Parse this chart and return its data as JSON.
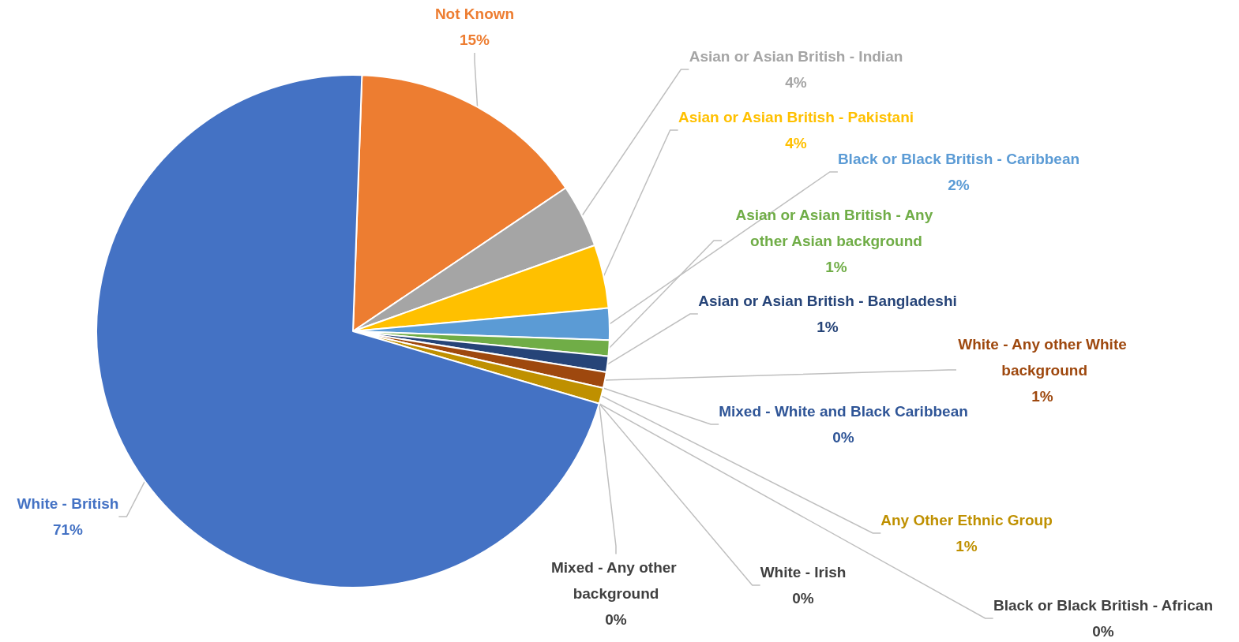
{
  "chart_data": {
    "type": "pie",
    "categories": [
      "Not Known",
      "Asian or Asian British - Indian",
      "Asian or Asian British - Pakistani",
      "Black or Black British - Caribbean",
      "Asian or Asian British - Any other Asian background",
      "Asian or Asian British - Bangladeshi",
      "White - Any other White background",
      "Mixed - White and Black Caribbean",
      "Any Other Ethnic Group",
      "Black or Black British - African",
      "White - Irish",
      "Mixed - Any other background",
      "White - British"
    ],
    "values": [
      15,
      4,
      4,
      2,
      1,
      1,
      1,
      0,
      1,
      0,
      0,
      0,
      71
    ],
    "value_labels": [
      "15%",
      "4%",
      "4%",
      "2%",
      "1%",
      "1%",
      "1%",
      "0%",
      "1%",
      "0%",
      "0%",
      "0%",
      "71%"
    ],
    "colors": [
      "#ed7d31",
      "#a5a5a5",
      "#ffc000",
      "#5b9bd5",
      "#70ad47",
      "#264478",
      "#9e480e",
      "#2f5597",
      "#bf9000",
      "#404040",
      "#404040",
      "#404040",
      "#4472c4"
    ]
  }
}
